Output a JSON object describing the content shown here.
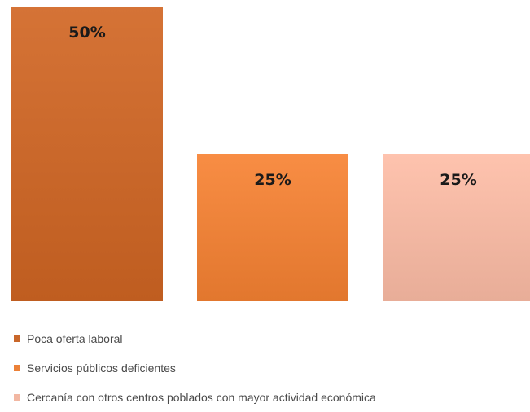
{
  "chart_data": {
    "type": "bar",
    "categories": [
      "Poca oferta laboral",
      "Servicios públicos deficientes",
      "Cercanía con otros centros poblados con mayor actividad económica"
    ],
    "values": [
      50,
      25,
      25
    ],
    "data_labels": [
      "50%",
      "25%",
      "25%"
    ],
    "ylim": [
      0,
      50
    ],
    "grid": false,
    "legend_position": "bottom-left",
    "colors": [
      "#c9672a",
      "#ec8138",
      "#f2b7a2"
    ]
  }
}
